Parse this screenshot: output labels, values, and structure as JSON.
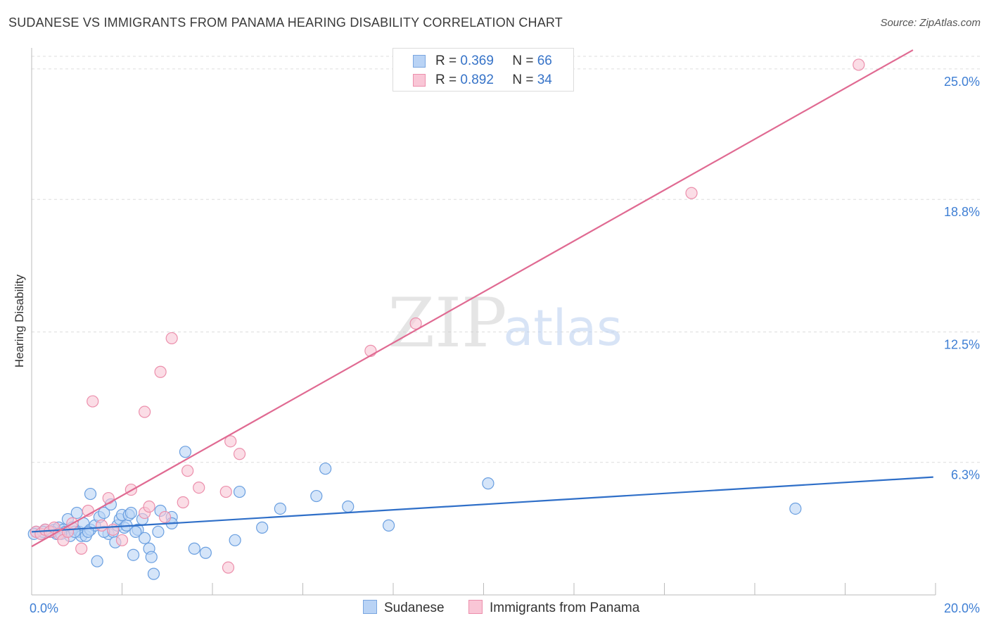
{
  "title": "SUDANESE VS IMMIGRANTS FROM PANAMA HEARING DISABILITY CORRELATION CHART",
  "source": "Source: ZipAtlas.com",
  "watermark": {
    "zip": "ZIP",
    "atlas": "atlas"
  },
  "legend_top": {
    "rows": [
      {
        "r_label": "R =",
        "r_value": "0.369",
        "n_label": "N =",
        "n_value": "66",
        "color": "#b9d3f5",
        "border": "#7aa6e0"
      },
      {
        "r_label": "R =",
        "r_value": "0.892",
        "n_label": "N =",
        "n_value": "34",
        "color": "#f9c6d6",
        "border": "#ec8fac"
      }
    ]
  },
  "legend_bottom": {
    "items": [
      {
        "label": "Sudanese",
        "color": "#b9d3f5",
        "border": "#7aa6e0"
      },
      {
        "label": "Immigrants from Panama",
        "color": "#f9c6d6",
        "border": "#ec8fac"
      }
    ]
  },
  "chart_data": {
    "type": "scatter",
    "title": "SUDANESE VS IMMIGRANTS FROM PANAMA HEARING DISABILITY CORRELATION CHART",
    "xlabel": "",
    "ylabel": "Hearing Disability",
    "xlim": [
      0,
      20
    ],
    "ylim": [
      0,
      25.6
    ],
    "x_tick_labels": [
      "0.0%",
      "20.0%"
    ],
    "y_ticks": [
      6.3,
      12.5,
      18.8,
      25.0
    ],
    "y_tick_labels": [
      "6.3%",
      "12.5%",
      "18.8%",
      "25.0%"
    ],
    "grid": "horizontal dashed",
    "legend_placement": "top-center",
    "series": [
      {
        "name": "Sudanese",
        "color": "#6a9fe0",
        "fill": "#b9d3f5",
        "trend_color": "#2f6fc8",
        "trend": {
          "x0": 0,
          "y0": 3.0,
          "x1": 19.95,
          "y1": 5.6
        },
        "points": [
          [
            0.1,
            3.0
          ],
          [
            0.2,
            2.9
          ],
          [
            0.3,
            3.1
          ],
          [
            0.4,
            3.0
          ],
          [
            0.5,
            3.1
          ],
          [
            0.55,
            2.9
          ],
          [
            0.6,
            3.2
          ],
          [
            0.7,
            3.1
          ],
          [
            0.75,
            3.0
          ],
          [
            0.8,
            3.6
          ],
          [
            0.85,
            2.8
          ],
          [
            0.9,
            3.2
          ],
          [
            1.0,
            3.9
          ],
          [
            1.05,
            3.0
          ],
          [
            1.1,
            2.8
          ],
          [
            1.15,
            3.4
          ],
          [
            1.2,
            2.8
          ],
          [
            1.3,
            3.1
          ],
          [
            1.3,
            4.8
          ],
          [
            1.4,
            3.3
          ],
          [
            1.5,
            3.7
          ],
          [
            1.6,
            3.9
          ],
          [
            1.7,
            2.9
          ],
          [
            1.75,
            4.3
          ],
          [
            1.8,
            3.0
          ],
          [
            1.85,
            2.5
          ],
          [
            1.9,
            3.3
          ],
          [
            1.95,
            3.6
          ],
          [
            2.0,
            3.8
          ],
          [
            2.05,
            3.2
          ],
          [
            2.1,
            3.3
          ],
          [
            2.15,
            3.8
          ],
          [
            2.2,
            3.9
          ],
          [
            2.25,
            1.9
          ],
          [
            2.35,
            3.1
          ],
          [
            2.45,
            3.6
          ],
          [
            2.5,
            2.7
          ],
          [
            2.6,
            2.2
          ],
          [
            2.65,
            1.8
          ],
          [
            2.7,
            1.0
          ],
          [
            2.8,
            3.0
          ],
          [
            2.85,
            4.0
          ],
          [
            3.1,
            3.7
          ],
          [
            3.1,
            3.4
          ],
          [
            3.4,
            6.8
          ],
          [
            3.6,
            2.2
          ],
          [
            3.85,
            2.0
          ],
          [
            1.45,
            1.6
          ],
          [
            4.5,
            2.6
          ],
          [
            4.6,
            4.9
          ],
          [
            5.1,
            3.2
          ],
          [
            5.5,
            4.1
          ],
          [
            6.3,
            4.7
          ],
          [
            6.5,
            6.0
          ],
          [
            7.0,
            4.2
          ],
          [
            7.9,
            3.3
          ],
          [
            10.1,
            5.3
          ],
          [
            16.9,
            4.1
          ],
          [
            0.05,
            2.9
          ],
          [
            0.25,
            3.0
          ],
          [
            0.45,
            3.0
          ],
          [
            0.65,
            2.9
          ],
          [
            0.95,
            3.0
          ],
          [
            1.25,
            3.0
          ],
          [
            1.6,
            3.0
          ],
          [
            2.3,
            3.0
          ]
        ]
      },
      {
        "name": "Immigrants from Panama",
        "color": "#ec8fac",
        "fill": "#f9c6d6",
        "trend_color": "#e06a92",
        "trend": {
          "x0": 0,
          "y0": 2.3,
          "x1": 19.5,
          "y1": 25.9
        },
        "points": [
          [
            0.1,
            3.0
          ],
          [
            0.2,
            2.9
          ],
          [
            0.3,
            3.1
          ],
          [
            0.4,
            3.0
          ],
          [
            0.5,
            3.2
          ],
          [
            0.6,
            2.9
          ],
          [
            0.7,
            2.6
          ],
          [
            0.8,
            3.0
          ],
          [
            0.9,
            3.4
          ],
          [
            1.1,
            2.2
          ],
          [
            1.25,
            4.0
          ],
          [
            1.35,
            9.2
          ],
          [
            1.55,
            3.3
          ],
          [
            1.7,
            4.6
          ],
          [
            1.8,
            3.1
          ],
          [
            2.0,
            2.6
          ],
          [
            2.2,
            5.0
          ],
          [
            2.5,
            3.9
          ],
          [
            2.5,
            8.7
          ],
          [
            2.6,
            4.2
          ],
          [
            2.85,
            10.6
          ],
          [
            2.95,
            3.7
          ],
          [
            3.1,
            12.2
          ],
          [
            3.35,
            4.4
          ],
          [
            3.45,
            5.9
          ],
          [
            3.7,
            5.1
          ],
          [
            4.3,
            4.9
          ],
          [
            4.4,
            7.3
          ],
          [
            4.6,
            6.7
          ],
          [
            4.35,
            1.3
          ],
          [
            7.5,
            11.6
          ],
          [
            8.5,
            12.9
          ],
          [
            14.6,
            19.1
          ],
          [
            18.3,
            25.2
          ]
        ]
      }
    ]
  }
}
